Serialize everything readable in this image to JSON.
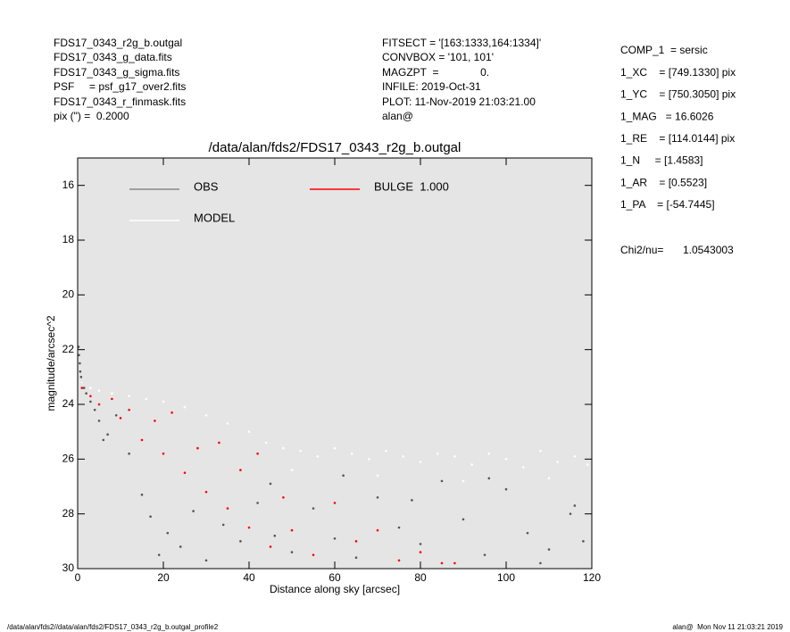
{
  "header": {
    "left": [
      "FDS17_0343_r2g_b.outgal",
      "FDS17_0343_g_data.fits",
      "FDS17_0343_g_sigma.fits",
      "PSF     = psf_g17_over2.fits",
      "FDS17_0343_r_finmask.fits",
      "pix (\") =  0.2000"
    ],
    "middle": [
      "FITSECT = '[163:1333,164:1334]'",
      "CONVBOX = '101, 101'",
      "MAGZPT  =              0.",
      "INFILE: 2019-Oct-31",
      "PLOT: 11-Nov-2019 21:03:21.00",
      "alan@"
    ],
    "right": [
      "COMP_1  = sersic",
      "1_XC    = [749.1330] pix",
      "1_YC    = [750.3050] pix",
      "1_MAG   = 16.6026",
      "1_RE    = [114.0144] pix",
      "1_N     = [1.4583]",
      "1_AR    = [0.5523]",
      "1_PA    = [-54.7445]"
    ],
    "chi2_label": "Chi2/nu=",
    "chi2_value": "1.0543003"
  },
  "footer": {
    "left": "/data/alan/fds2//data/alan/fds2/FDS17_0343_r2g_b.outgal_profile2",
    "right": "alan@  Mon Nov 11 21:03:21 2019"
  },
  "chart_data": {
    "type": "scatter",
    "title": "/data/alan/fds2/FDS17_0343_r2g_b.outgal",
    "x_label": "Distance along sky [arcsec]",
    "y_label": "magnitude/arcsec^2",
    "xlim": [
      0,
      120
    ],
    "xticks": [
      0,
      20,
      40,
      60,
      80,
      100,
      120
    ],
    "ylim": [
      15,
      30
    ],
    "yticks": [
      16,
      18,
      20,
      22,
      24,
      26,
      28,
      30
    ],
    "y_inverted": true,
    "background": "#e5e5e5",
    "series": [
      {
        "name": "OBS",
        "color": "#555555",
        "x": [
          0.2,
          0.3,
          0.5,
          0.6,
          0.8,
          1,
          1.5,
          2,
          3,
          4,
          5,
          6,
          7,
          9,
          12,
          15,
          17,
          19,
          21,
          24,
          27,
          30,
          34,
          38,
          42,
          46,
          50,
          55,
          60,
          65,
          70,
          75,
          80,
          85,
          90,
          95,
          100,
          105,
          110,
          115,
          118,
          45,
          62,
          78,
          96,
          108,
          116
        ],
        "values": [
          21.9,
          22.2,
          22.5,
          22.8,
          23.0,
          23.2,
          23.4,
          23.6,
          23.9,
          24.2,
          24.6,
          25.3,
          25.1,
          24.4,
          25.8,
          27.3,
          28.1,
          29.5,
          28.7,
          29.2,
          27.9,
          29.7,
          28.4,
          29.0,
          27.6,
          28.8,
          29.4,
          27.8,
          28.9,
          29.6,
          27.4,
          28.5,
          29.1,
          26.8,
          28.2,
          29.5,
          27.1,
          28.7,
          29.3,
          28.0,
          29.0,
          26.9,
          26.6,
          27.5,
          26.7,
          29.8,
          27.7
        ]
      },
      {
        "name": "MODEL",
        "color": "#ffffff",
        "x": [
          1,
          3,
          5,
          8,
          12,
          16,
          20,
          25,
          30,
          35,
          40,
          44,
          48,
          52,
          56,
          60,
          64,
          68,
          72,
          76,
          80,
          84,
          88,
          92,
          96,
          100,
          104,
          108,
          112,
          116,
          119,
          50,
          70,
          90,
          110
        ],
        "values": [
          23.2,
          23.4,
          23.5,
          23.6,
          23.7,
          23.8,
          23.9,
          24.1,
          24.4,
          24.7,
          25.0,
          25.4,
          25.6,
          25.7,
          25.9,
          25.6,
          25.8,
          26.0,
          25.7,
          25.9,
          26.1,
          25.8,
          25.9,
          26.2,
          25.8,
          26.0,
          26.3,
          25.7,
          26.1,
          25.9,
          26.2,
          26.4,
          26.6,
          26.8,
          26.7
        ]
      },
      {
        "name": "BULGE  1.000",
        "color": "#ff0000",
        "x": [
          1,
          3,
          5,
          8,
          10,
          12,
          15,
          18,
          20,
          22,
          25,
          28,
          30,
          33,
          35,
          38,
          40,
          42,
          45,
          48,
          50,
          55,
          60,
          65,
          70,
          75,
          80,
          85,
          88
        ],
        "values": [
          23.4,
          23.7,
          24.0,
          23.8,
          24.5,
          24.2,
          25.3,
          24.6,
          25.8,
          24.3,
          26.5,
          25.6,
          27.2,
          25.4,
          27.8,
          26.4,
          28.5,
          25.8,
          29.2,
          27.4,
          28.6,
          29.5,
          27.6,
          29.0,
          28.6,
          29.7,
          29.4,
          29.8,
          29.8
        ]
      }
    ]
  }
}
